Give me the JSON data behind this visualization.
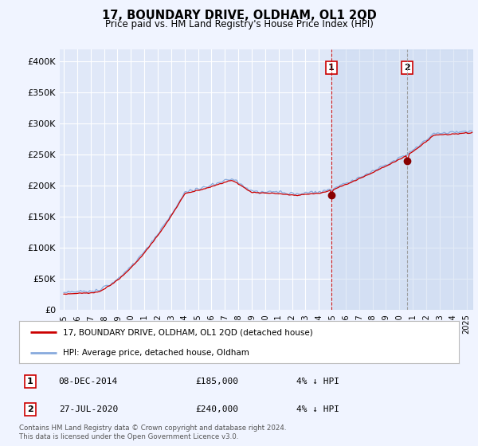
{
  "title": "17, BOUNDARY DRIVE, OLDHAM, OL1 2QD",
  "subtitle": "Price paid vs. HM Land Registry's House Price Index (HPI)",
  "ylabel_ticks": [
    "£0",
    "£50K",
    "£100K",
    "£150K",
    "£200K",
    "£250K",
    "£300K",
    "£350K",
    "£400K"
  ],
  "ylabel_values": [
    0,
    50000,
    100000,
    150000,
    200000,
    250000,
    300000,
    350000,
    400000
  ],
  "ylim": [
    0,
    420000
  ],
  "xlim_start": 1994.7,
  "xlim_end": 2025.5,
  "marker1_x": 2014.92,
  "marker1_y": 185000,
  "marker1_label": "1",
  "marker2_x": 2020.57,
  "marker2_y": 240000,
  "marker2_label": "2",
  "vline1_x": 2014.92,
  "vline2_x": 2020.57,
  "legend_line1_color": "#cc0000",
  "legend_line1_label": "17, BOUNDARY DRIVE, OLDHAM, OL1 2QD (detached house)",
  "legend_line2_color": "#88aadd",
  "legend_line2_label": "HPI: Average price, detached house, Oldham",
  "annotation1_date": "08-DEC-2014",
  "annotation1_price": "£185,000",
  "annotation1_hpi": "4% ↓ HPI",
  "annotation2_date": "27-JUL-2020",
  "annotation2_price": "£240,000",
  "annotation2_hpi": "4% ↓ HPI",
  "footer": "Contains HM Land Registry data © Crown copyright and database right 2024.\nThis data is licensed under the Open Government Licence v3.0.",
  "background_color": "#f0f4ff",
  "plot_bg_color": "#e0e8f8",
  "grid_color": "#ffffff",
  "hpi_line_color": "#88aadd",
  "price_line_color": "#cc0000",
  "shade_color": "#c8d8f0",
  "shade_alpha": 0.5
}
